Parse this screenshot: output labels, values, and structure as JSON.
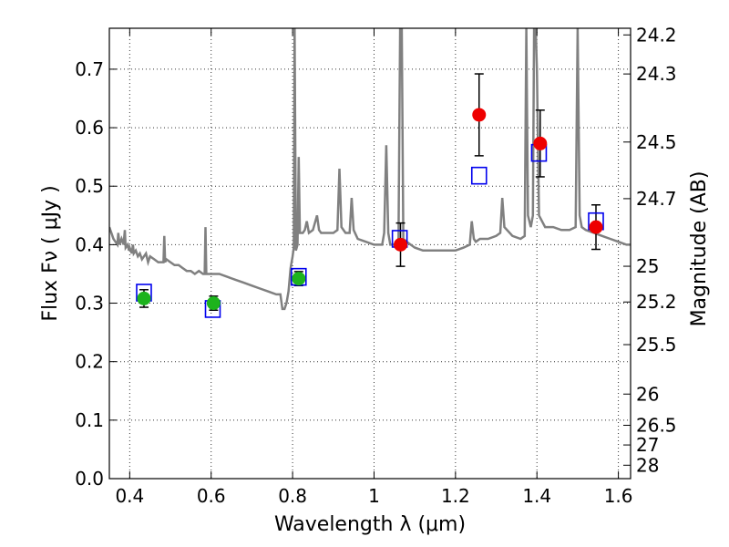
{
  "chart_data": {
    "type": "scatter",
    "xlabel": "Wavelength  λ (μm)",
    "ylabel": "Flux  Fν  ( μJy )",
    "ylabel_right": "Magnitude (AB)",
    "xlim": [
      0.35,
      1.63
    ],
    "ylim": [
      0.0,
      0.77
    ],
    "grid": true,
    "x_ticks": [
      {
        "v": 0.4,
        "label": "0.4"
      },
      {
        "v": 0.6,
        "label": "0.6"
      },
      {
        "v": 0.8,
        "label": "0.8"
      },
      {
        "v": 1.0,
        "label": "1"
      },
      {
        "v": 1.2,
        "label": "1.2"
      },
      {
        "v": 1.4,
        "label": "1.4"
      },
      {
        "v": 1.6,
        "label": "1.6"
      }
    ],
    "y_ticks": [
      {
        "v": 0.0,
        "label": "0.0"
      },
      {
        "v": 0.1,
        "label": "0.1"
      },
      {
        "v": 0.2,
        "label": "0.2"
      },
      {
        "v": 0.3,
        "label": "0.3"
      },
      {
        "v": 0.4,
        "label": "0.4"
      },
      {
        "v": 0.5,
        "label": "0.5"
      },
      {
        "v": 0.6,
        "label": "0.6"
      },
      {
        "v": 0.7,
        "label": "0.7"
      }
    ],
    "mag_ticks": [
      {
        "v": 24.2,
        "label": "24.2"
      },
      {
        "v": 24.3,
        "label": "24.3"
      },
      {
        "v": 24.5,
        "label": "24.5"
      },
      {
        "v": 24.7,
        "label": "24.7"
      },
      {
        "v": 25.0,
        "label": "25"
      },
      {
        "v": 25.2,
        "label": "25.2"
      },
      {
        "v": 25.5,
        "label": "25.5"
      },
      {
        "v": 26.0,
        "label": "26"
      },
      {
        "v": 26.5,
        "label": "26.5"
      },
      {
        "v": 27.0,
        "label": "27"
      },
      {
        "v": 28.0,
        "label": "28"
      }
    ],
    "model_spectrum": {
      "color": "#808080",
      "points": [
        [
          0.35,
          0.43
        ],
        [
          0.36,
          0.41
        ],
        [
          0.365,
          0.405
        ],
        [
          0.37,
          0.4
        ],
        [
          0.372,
          0.42
        ],
        [
          0.375,
          0.4
        ],
        [
          0.38,
          0.41
        ],
        [
          0.385,
          0.4
        ],
        [
          0.388,
          0.425
        ],
        [
          0.39,
          0.395
        ],
        [
          0.395,
          0.4
        ],
        [
          0.398,
          0.39
        ],
        [
          0.4,
          0.395
        ],
        [
          0.405,
          0.385
        ],
        [
          0.408,
          0.4
        ],
        [
          0.41,
          0.385
        ],
        [
          0.415,
          0.39
        ],
        [
          0.42,
          0.38
        ],
        [
          0.425,
          0.385
        ],
        [
          0.43,
          0.375
        ],
        [
          0.44,
          0.385
        ],
        [
          0.445,
          0.37
        ],
        [
          0.45,
          0.38
        ],
        [
          0.46,
          0.375
        ],
        [
          0.47,
          0.37
        ],
        [
          0.48,
          0.37
        ],
        [
          0.483,
          0.37
        ],
        [
          0.485,
          0.415
        ],
        [
          0.487,
          0.37
        ],
        [
          0.49,
          0.375
        ],
        [
          0.5,
          0.37
        ],
        [
          0.51,
          0.365
        ],
        [
          0.52,
          0.365
        ],
        [
          0.53,
          0.36
        ],
        [
          0.54,
          0.355
        ],
        [
          0.55,
          0.355
        ],
        [
          0.56,
          0.35
        ],
        [
          0.57,
          0.355
        ],
        [
          0.58,
          0.35
        ],
        [
          0.584,
          0.35
        ],
        [
          0.586,
          0.43
        ],
        [
          0.588,
          0.35
        ],
        [
          0.6,
          0.35
        ],
        [
          0.62,
          0.35
        ],
        [
          0.64,
          0.345
        ],
        [
          0.66,
          0.34
        ],
        [
          0.68,
          0.335
        ],
        [
          0.7,
          0.33
        ],
        [
          0.72,
          0.325
        ],
        [
          0.74,
          0.32
        ],
        [
          0.76,
          0.315
        ],
        [
          0.77,
          0.315
        ],
        [
          0.775,
          0.29
        ],
        [
          0.78,
          0.29
        ],
        [
          0.785,
          0.3
        ],
        [
          0.79,
          0.32
        ],
        [
          0.795,
          0.36
        ],
        [
          0.8,
          0.38
        ],
        [
          0.803,
          0.395
        ],
        [
          0.805,
          0.77
        ],
        [
          0.808,
          0.39
        ],
        [
          0.812,
          0.4
        ],
        [
          0.815,
          0.55
        ],
        [
          0.818,
          0.42
        ],
        [
          0.825,
          0.42
        ],
        [
          0.83,
          0.425
        ],
        [
          0.835,
          0.44
        ],
        [
          0.84,
          0.42
        ],
        [
          0.85,
          0.425
        ],
        [
          0.86,
          0.45
        ],
        [
          0.865,
          0.425
        ],
        [
          0.87,
          0.42
        ],
        [
          0.88,
          0.42
        ],
        [
          0.9,
          0.42
        ],
        [
          0.91,
          0.425
        ],
        [
          0.915,
          0.53
        ],
        [
          0.92,
          0.43
        ],
        [
          0.93,
          0.42
        ],
        [
          0.94,
          0.42
        ],
        [
          0.945,
          0.48
        ],
        [
          0.95,
          0.425
        ],
        [
          0.96,
          0.41
        ],
        [
          0.98,
          0.405
        ],
        [
          1.0,
          0.4
        ],
        [
          1.02,
          0.4
        ],
        [
          1.025,
          0.42
        ],
        [
          1.03,
          0.57
        ],
        [
          1.035,
          0.42
        ],
        [
          1.04,
          0.4
        ],
        [
          1.05,
          0.4
        ],
        [
          1.06,
          0.405
        ],
        [
          1.064,
          0.77
        ],
        [
          1.068,
          0.77
        ],
        [
          1.072,
          0.41
        ],
        [
          1.08,
          0.405
        ],
        [
          1.1,
          0.395
        ],
        [
          1.12,
          0.39
        ],
        [
          1.14,
          0.39
        ],
        [
          1.16,
          0.39
        ],
        [
          1.18,
          0.39
        ],
        [
          1.2,
          0.39
        ],
        [
          1.22,
          0.395
        ],
        [
          1.235,
          0.4
        ],
        [
          1.24,
          0.44
        ],
        [
          1.245,
          0.41
        ],
        [
          1.25,
          0.405
        ],
        [
          1.26,
          0.41
        ],
        [
          1.28,
          0.41
        ],
        [
          1.3,
          0.415
        ],
        [
          1.31,
          0.42
        ],
        [
          1.315,
          0.48
        ],
        [
          1.32,
          0.43
        ],
        [
          1.34,
          0.415
        ],
        [
          1.36,
          0.41
        ],
        [
          1.37,
          0.415
        ],
        [
          1.374,
          0.77
        ],
        [
          1.378,
          0.45
        ],
        [
          1.385,
          0.43
        ],
        [
          1.39,
          0.45
        ],
        [
          1.393,
          0.77
        ],
        [
          1.397,
          0.77
        ],
        [
          1.4,
          0.7
        ],
        [
          1.405,
          0.45
        ],
        [
          1.42,
          0.43
        ],
        [
          1.44,
          0.43
        ],
        [
          1.46,
          0.425
        ],
        [
          1.48,
          0.425
        ],
        [
          1.495,
          0.43
        ],
        [
          1.5,
          0.77
        ],
        [
          1.505,
          0.45
        ],
        [
          1.51,
          0.43
        ],
        [
          1.52,
          0.425
        ],
        [
          1.54,
          0.42
        ],
        [
          1.56,
          0.415
        ],
        [
          1.58,
          0.41
        ],
        [
          1.6,
          0.405
        ],
        [
          1.62,
          0.4
        ],
        [
          1.63,
          0.4
        ]
      ]
    },
    "model_boxes": {
      "color": "#0000ee",
      "points": [
        {
          "x": 0.435,
          "y": 0.318
        },
        {
          "x": 0.604,
          "y": 0.29
        },
        {
          "x": 0.815,
          "y": 0.345
        },
        {
          "x": 1.063,
          "y": 0.41
        },
        {
          "x": 1.258,
          "y": 0.518
        },
        {
          "x": 1.405,
          "y": 0.557
        },
        {
          "x": 1.545,
          "y": 0.44
        }
      ]
    },
    "observed_green": {
      "color": "#1db31d",
      "points": [
        {
          "x": 0.435,
          "y": 0.308,
          "err": 0.015
        },
        {
          "x": 0.606,
          "y": 0.3,
          "err": 0.012
        },
        {
          "x": 0.815,
          "y": 0.342,
          "err": 0.012
        }
      ]
    },
    "observed_red": {
      "color": "#ee0000",
      "points": [
        {
          "x": 1.065,
          "y": 0.4,
          "err": 0.037
        },
        {
          "x": 1.258,
          "y": 0.622,
          "err": 0.07
        },
        {
          "x": 1.408,
          "y": 0.573,
          "err": 0.057
        },
        {
          "x": 1.545,
          "y": 0.43,
          "err": 0.038
        }
      ]
    }
  }
}
